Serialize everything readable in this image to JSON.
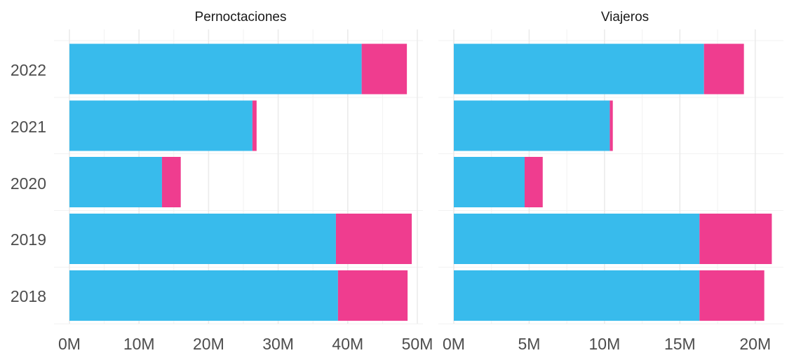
{
  "chart_data": {
    "type": "bar",
    "orientation": "horizontal",
    "stacked": true,
    "categories": [
      "2022",
      "2021",
      "2020",
      "2019",
      "2018"
    ],
    "series_colors": [
      "#38bbec",
      "#ef3d8f"
    ],
    "grid": true,
    "legend": "none",
    "facets": [
      {
        "title": "Pernoctaciones",
        "xlim": [
          0,
          50000000
        ],
        "xticks": [
          0,
          10000000,
          20000000,
          30000000,
          40000000,
          50000000
        ],
        "xtick_labels": [
          "0M",
          "10M",
          "20M",
          "30M",
          "40M",
          "50M"
        ],
        "series": [
          {
            "values": [
              42000000,
              26300000,
              13300000,
              38300000,
              38600000
            ]
          },
          {
            "values": [
              6500000,
              600000,
              2700000,
              10900000,
              10000000
            ]
          }
        ]
      },
      {
        "title": "Viajeros",
        "xlim": [
          0,
          21500000
        ],
        "xticks": [
          0,
          5000000,
          10000000,
          15000000,
          20000000
        ],
        "xtick_labels": [
          "0M",
          "5M",
          "10M",
          "15M",
          "20M"
        ],
        "series": [
          {
            "values": [
              16600000,
              10350000,
              4700000,
              16300000,
              16300000
            ]
          },
          {
            "values": [
              2650000,
              200000,
              1200000,
              4800000,
              4300000
            ]
          }
        ]
      }
    ]
  }
}
